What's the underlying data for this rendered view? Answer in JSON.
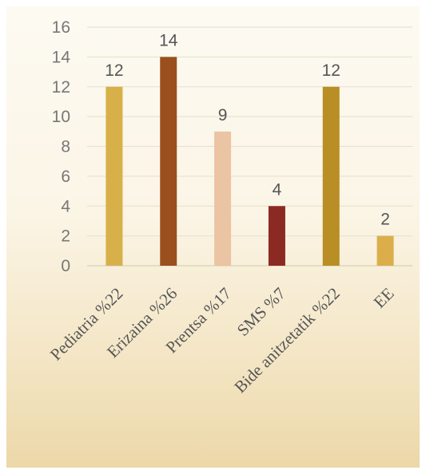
{
  "chart_data": {
    "type": "bar",
    "categories": [
      "Pediatria %22",
      "Erizaina %26",
      "Prentsa %17",
      "SMS %7",
      "Bide anitzetatik %22",
      "EE"
    ],
    "values": [
      12,
      14,
      9,
      4,
      12,
      2
    ],
    "colors": [
      "#d8b04a",
      "#9a4f1d",
      "#ebc4a4",
      "#8b2a22",
      "#b88e25",
      "#dcae4b"
    ],
    "ylim": [
      0,
      16
    ],
    "yticks": [
      0,
      2,
      4,
      6,
      8,
      10,
      12,
      14,
      16
    ],
    "grid": true,
    "legend": "none",
    "title": "",
    "xlabel": "",
    "ylabel": ""
  }
}
